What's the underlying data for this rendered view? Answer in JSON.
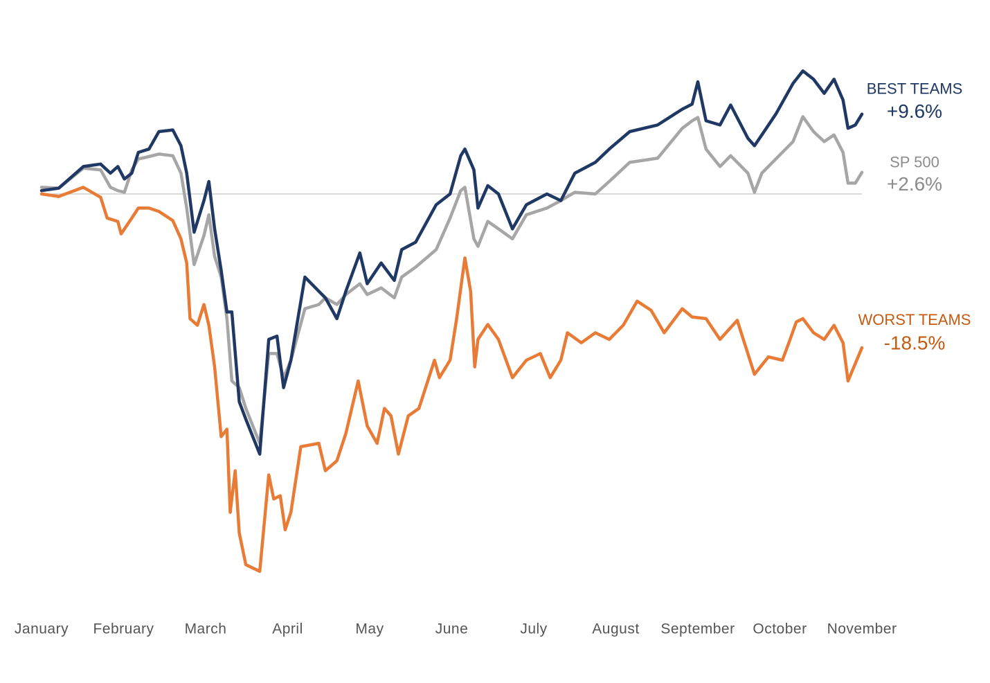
{
  "chart_data": {
    "type": "line",
    "xlim": [
      0,
      10
    ],
    "xticks": [
      {
        "value": 0,
        "label": "January"
      },
      {
        "value": 1,
        "label": "February"
      },
      {
        "value": 2,
        "label": "March"
      },
      {
        "value": 3,
        "label": "April"
      },
      {
        "value": 4,
        "label": "May"
      },
      {
        "value": 5,
        "label": "June"
      },
      {
        "value": 6,
        "label": "July"
      },
      {
        "value": 7,
        "label": "August"
      },
      {
        "value": 8,
        "label": "September"
      },
      {
        "value": 9,
        "label": "October"
      },
      {
        "value": 10,
        "label": "November"
      }
    ],
    "ylim": [
      -50,
      18
    ],
    "baseline": 0,
    "series": [
      {
        "name": "BEST TEAMS",
        "color": "#1f3864",
        "label_color": "#1f3864",
        "end_value": 9.6,
        "end_value_label": "+9.6%",
        "x": [
          0,
          0.21,
          0.51,
          0.72,
          0.84,
          0.93,
          1.01,
          1.1,
          1.18,
          1.31,
          1.43,
          1.6,
          1.7,
          1.77,
          1.86,
          1.98,
          2.04,
          2.11,
          2.19,
          2.26,
          2.32,
          2.41,
          2.49,
          2.66,
          2.77,
          2.87,
          2.95,
          3.04,
          3.21,
          3.38,
          3.46,
          3.6,
          3.71,
          3.88,
          3.97,
          4.14,
          4.3,
          4.39,
          4.56,
          4.81,
          4.98,
          5.11,
          5.16,
          5.27,
          5.32,
          5.44,
          5.57,
          5.74,
          5.91,
          6.16,
          6.33,
          6.5,
          6.75,
          6.92,
          7.17,
          7.51,
          7.81,
          7.93,
          8,
          8.1,
          8.27,
          8.4,
          8.61,
          8.69,
          8.78,
          8.95,
          9.16,
          9.28,
          9.41,
          9.54,
          9.66,
          9.77,
          9.83,
          9.92,
          10
        ],
        "values": [
          0.4,
          0.7,
          3.3,
          3.6,
          2.5,
          3.3,
          1.8,
          2.5,
          5.0,
          5.4,
          7.5,
          7.7,
          5.8,
          2.5,
          -4.6,
          -0.8,
          1.5,
          -4.2,
          -9.2,
          -14.2,
          -14.2,
          -25.0,
          -27.1,
          -31.3,
          -17.5,
          -17.1,
          -23.3,
          -20.0,
          -10.0,
          -11.7,
          -12.5,
          -15.0,
          -11.7,
          -7.1,
          -10.8,
          -8.3,
          -10.4,
          -6.7,
          -5.8,
          -1.3,
          0,
          4.6,
          5.4,
          2.9,
          -1.7,
          1.0,
          0,
          -4.2,
          -1.3,
          0,
          -0.8,
          2.5,
          3.8,
          5.4,
          7.5,
          8.3,
          10.2,
          10.8,
          13.5,
          8.8,
          8.3,
          10.7,
          6.7,
          5.8,
          7.1,
          9.6,
          13.3,
          14.8,
          13.8,
          12.1,
          13.8,
          11.3,
          7.9,
          8.3,
          9.6
        ]
      },
      {
        "name": "SP 500",
        "color": "#a6a6a6",
        "label_color": "#8c8c8c",
        "end_value": 2.6,
        "end_value_label": "+2.6%",
        "x": [
          0,
          0.21,
          0.51,
          0.72,
          0.84,
          0.93,
          1.01,
          1.1,
          1.18,
          1.31,
          1.43,
          1.6,
          1.7,
          1.77,
          1.86,
          1.98,
          2.04,
          2.11,
          2.19,
          2.26,
          2.32,
          2.41,
          2.49,
          2.66,
          2.77,
          2.87,
          2.95,
          3.04,
          3.21,
          3.38,
          3.46,
          3.6,
          3.71,
          3.88,
          3.97,
          4.14,
          4.3,
          4.39,
          4.56,
          4.81,
          4.98,
          5.11,
          5.16,
          5.27,
          5.32,
          5.44,
          5.57,
          5.74,
          5.91,
          6.16,
          6.33,
          6.5,
          6.75,
          6.92,
          7.17,
          7.51,
          7.81,
          7.93,
          8,
          8.1,
          8.27,
          8.4,
          8.61,
          8.69,
          8.78,
          8.95,
          9.16,
          9.28,
          9.41,
          9.54,
          9.66,
          9.77,
          9.83,
          9.92,
          10
        ],
        "values": [
          0.8,
          0.7,
          3.1,
          2.9,
          0.8,
          0.4,
          0.2,
          2.9,
          4.2,
          4.5,
          4.8,
          4.6,
          2.5,
          -1.7,
          -8.5,
          -5.0,
          -2.5,
          -7.5,
          -10.0,
          -15.0,
          -22.5,
          -23.3,
          -25.8,
          -30.0,
          -19.2,
          -19.2,
          -22.1,
          -20.0,
          -13.8,
          -13.3,
          -12.5,
          -13.3,
          -12.1,
          -10.8,
          -12.1,
          -11.3,
          -12.5,
          -10.0,
          -8.8,
          -6.7,
          -2.9,
          0.4,
          0.8,
          -5.4,
          -6.3,
          -3.3,
          -4.2,
          -5.4,
          -2.5,
          -1.7,
          -0.8,
          0.2,
          0,
          1.5,
          3.8,
          4.3,
          7.9,
          8.8,
          9.2,
          5.4,
          3.3,
          4.6,
          2.5,
          0.2,
          2.5,
          4.2,
          6.3,
          9.3,
          7.5,
          6.3,
          7.1,
          5.0,
          1.3,
          1.3,
          2.6
        ]
      },
      {
        "name": "WORST TEAMS",
        "color": "#e87b35",
        "label_color": "#c55a11",
        "end_value": -18.5,
        "end_value_label": "-18.5%",
        "x": [
          0,
          0.21,
          0.51,
          0.72,
          0.8,
          0.93,
          0.97,
          1.1,
          1.18,
          1.31,
          1.43,
          1.6,
          1.7,
          1.77,
          1.81,
          1.9,
          1.98,
          2.04,
          2.11,
          2.19,
          2.26,
          2.3,
          2.36,
          2.41,
          2.49,
          2.66,
          2.77,
          2.83,
          2.91,
          2.97,
          3.04,
          3.16,
          3.38,
          3.46,
          3.6,
          3.71,
          3.86,
          3.97,
          4.09,
          4.18,
          4.26,
          4.35,
          4.47,
          4.6,
          4.79,
          4.85,
          4.98,
          5.06,
          5.16,
          5.23,
          5.28,
          5.32,
          5.44,
          5.57,
          5.74,
          5.91,
          6.08,
          6.2,
          6.33,
          6.41,
          6.58,
          6.75,
          6.92,
          7.09,
          7.26,
          7.43,
          7.59,
          7.81,
          7.93,
          8.1,
          8.27,
          8.48,
          8.69,
          8.86,
          9.03,
          9.11,
          9.2,
          9.28,
          9.41,
          9.54,
          9.66,
          9.77,
          9.83,
          10
        ],
        "values": [
          0,
          -0.3,
          0.8,
          -0.4,
          -2.9,
          -3.3,
          -4.8,
          -2.9,
          -1.7,
          -1.7,
          -2.1,
          -3.2,
          -5.4,
          -8.3,
          -15.0,
          -15.8,
          -13.3,
          -15.8,
          -20.8,
          -29.2,
          -28.3,
          -38.3,
          -33.3,
          -40.8,
          -44.6,
          -45.4,
          -33.8,
          -36.7,
          -36.3,
          -40.4,
          -38.3,
          -30.4,
          -30.0,
          -33.3,
          -32.1,
          -28.8,
          -22.5,
          -27.9,
          -30.0,
          -25.8,
          -26.7,
          -31.3,
          -26.7,
          -25.8,
          -20.0,
          -22.1,
          -20.0,
          -15.0,
          -7.7,
          -11.7,
          -20.8,
          -17.5,
          -15.7,
          -17.5,
          -22.1,
          -20.0,
          -19.2,
          -22.1,
          -20.0,
          -16.7,
          -17.9,
          -16.7,
          -17.5,
          -15.8,
          -12.9,
          -14.0,
          -16.7,
          -13.8,
          -14.8,
          -15.0,
          -17.5,
          -15.2,
          -21.7,
          -19.6,
          -20.0,
          -17.9,
          -15.4,
          -15.0,
          -16.7,
          -17.5,
          -15.8,
          -17.9,
          -22.5,
          -18.5
        ]
      }
    ]
  }
}
